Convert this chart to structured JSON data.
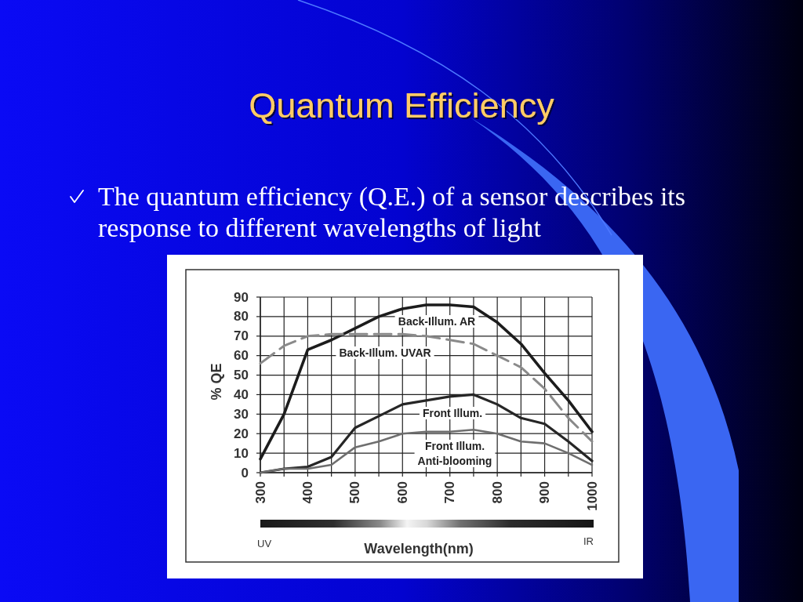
{
  "chart_data": {
    "type": "line",
    "title": "Quantum Efficiency",
    "subtitle": "The quantum efficiency (Q.E.) of a sensor describes its response to different wavelengths of light",
    "xlabel": "Wavelength(nm)",
    "ylabel": "% QE",
    "annotations": [
      "UV",
      "IR"
    ],
    "x": [
      300,
      350,
      400,
      450,
      500,
      550,
      600,
      650,
      700,
      750,
      800,
      850,
      900,
      950,
      1000
    ],
    "series": [
      {
        "name": "Back-Illum. AR",
        "color": "#1c1c1c",
        "values": [
          7,
          30,
          63,
          68,
          74,
          80,
          84,
          86,
          86,
          85,
          77,
          66,
          51,
          37,
          21
        ]
      },
      {
        "name": "Back-Illum. UVAR",
        "color": "#8a8a8a",
        "line_style": "dashed",
        "values": [
          56,
          65,
          70,
          71,
          71,
          71,
          71,
          70,
          68,
          66,
          60,
          54,
          43,
          28,
          16
        ]
      },
      {
        "name": "Front Illum.",
        "color": "#262626",
        "values": [
          0,
          2,
          3,
          8,
          23,
          29,
          35,
          37,
          39,
          40,
          35,
          28,
          25,
          16,
          6
        ]
      },
      {
        "name": "Front Illum. Anti-blooming",
        "color": "#6e6e6e",
        "values": [
          0,
          2,
          2,
          4,
          13,
          16,
          20,
          21,
          21,
          22,
          20,
          16,
          15,
          10,
          4
        ]
      }
    ],
    "xlim": [
      300,
      1000
    ],
    "ylim": [
      0,
      90
    ],
    "xticks": [
      300,
      {
        "value": 350,
        "label": null
      },
      400,
      {
        "value": 450,
        "label": null
      },
      500,
      {
        "value": 550,
        "label": null
      },
      600,
      {
        "value": 650,
        "label": null
      },
      700,
      {
        "value": 750,
        "label": null
      },
      800,
      {
        "value": 850,
        "label": null
      },
      900,
      {
        "value": 950,
        "label": null
      },
      1000
    ],
    "yticks": [
      0,
      10,
      20,
      30,
      40,
      50,
      60,
      70,
      80,
      90
    ],
    "grid": true,
    "line_style": "solid"
  }
}
